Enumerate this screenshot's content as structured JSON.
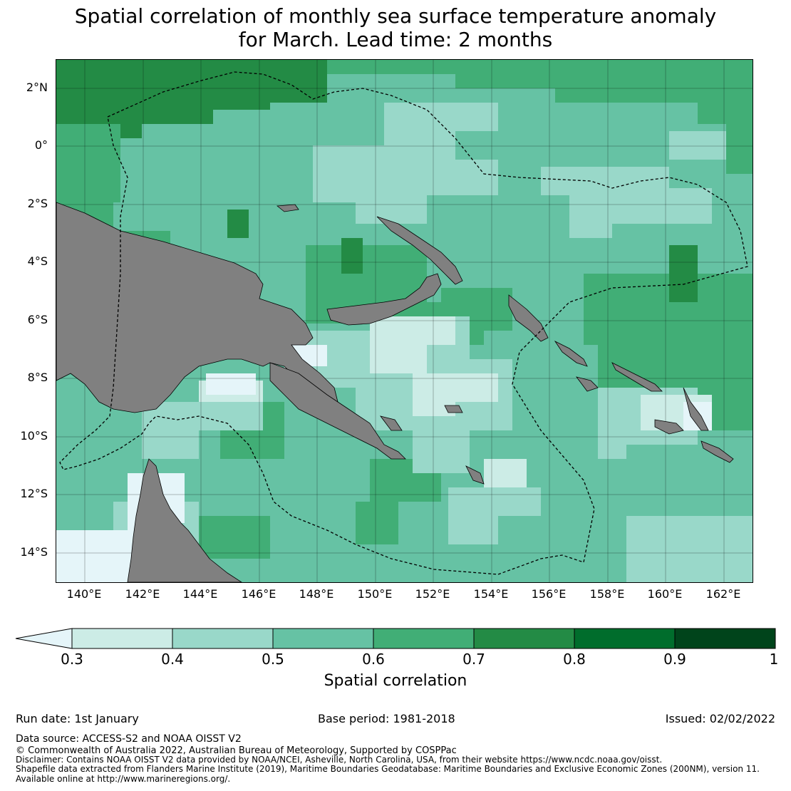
{
  "title_line1": "Spatial correlation of monthly sea surface temperature anomaly",
  "title_line2": "for March. Lead time: 2 months",
  "lat_labels": [
    "2°N",
    "0°",
    "2°S",
    "4°S",
    "6°S",
    "8°S",
    "10°S",
    "12°S",
    "14°S"
  ],
  "lon_labels": [
    "140°E",
    "142°E",
    "144°E",
    "146°E",
    "148°E",
    "150°E",
    "152°E",
    "154°E",
    "156°E",
    "158°E",
    "160°E",
    "162°E"
  ],
  "colorbar": {
    "title": "Spatial correlation",
    "ticks": [
      "0.3",
      "0.4",
      "0.5",
      "0.6",
      "0.7",
      "0.8",
      "0.9",
      "1"
    ],
    "colors": [
      "#e5f5f9",
      "#ccece6",
      "#99d8c9",
      "#66c2a4",
      "#41ae76",
      "#238b45",
      "#006d2c",
      "#00441b"
    ],
    "under_color": "#e5f5f9",
    "land_color": "#808080"
  },
  "footer": {
    "run_date": "Run date: 1st January",
    "base_period": "Base period: 1981-2018",
    "issued": "Issued: 02/02/2022",
    "data_source": "Data source: ACCESS-S2 and NOAA OISST V2",
    "copyright": "© Commonwealth of Australia 2022, Australian Bureau of Meteorology, Supported by COSPPac",
    "disclaimer": "Disclaimer: Contains NOAA OISST V2 data provided by NOAA/NCEI, Asheville, North Carolina, USA, from their website https://www.ncdc.noaa.gov/oisst.",
    "shapefile": "Shapefile data extracted from Flanders Marine Institute (2019), Maritime Boundaries Geodatabase: Maritime Boundaries and Exclusive Economic Zones (200NM), version 11.",
    "available": "Available online at http://www.marineregions.org/."
  }
}
